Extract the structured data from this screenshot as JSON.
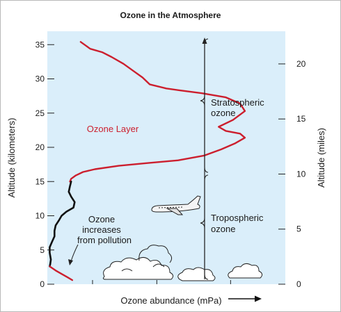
{
  "chart_data": {
    "type": "line",
    "title": "Ozone in the Atmosphere",
    "xlabel": "Ozone abundance (mPa)",
    "ylabel": "Altitude (kilometers)",
    "y2label": "Altitude (miles)",
    "ylim": [
      0,
      36
    ],
    "yticks": [
      0,
      5,
      10,
      15,
      20,
      25,
      30,
      35
    ],
    "y2ticks": [
      0,
      5,
      10,
      15,
      20
    ],
    "y2_per_y": 0.621371,
    "xlim": [
      0,
      10
    ],
    "x_tick_values": [
      1.9,
      4.6,
      7.7
    ],
    "grid": false,
    "series": [
      {
        "name": "Ozone Layer",
        "color": "#cc1f2e",
        "x": [
          0.95,
          1.0,
          1.2,
          1.5,
          2.0,
          3.0,
          4.2,
          5.5,
          6.6,
          7.3,
          7.9,
          8.3,
          8.1,
          7.5,
          7.2,
          7.8,
          8.3,
          8.1,
          7.5,
          6.5,
          5.6,
          5.0,
          4.3,
          4.0,
          3.6,
          3.2,
          2.7,
          2.3,
          1.8,
          1.6,
          1.4
        ],
        "y": [
          15.0,
          15.4,
          15.9,
          16.4,
          16.8,
          17.3,
          17.7,
          18.1,
          18.8,
          19.7,
          20.6,
          21.4,
          22.0,
          22.4,
          23.0,
          24.0,
          25.3,
          26.4,
          27.3,
          27.9,
          28.3,
          28.6,
          29.2,
          30.2,
          31.2,
          32.2,
          33.2,
          33.9,
          34.4,
          34.9,
          35.4
        ]
      },
      {
        "name": "Tropospheric profile",
        "color": "#111111",
        "x": [
          1.0,
          0.95,
          0.9,
          1.0,
          1.15,
          1.1,
          0.8,
          0.6,
          0.5,
          0.35,
          0.3,
          0.3,
          0.2,
          0.1,
          0.1,
          0.15,
          0.12,
          0.1
        ],
        "y": [
          15.0,
          14.3,
          13.5,
          12.8,
          12.0,
          11.2,
          10.6,
          10.0,
          9.4,
          8.6,
          7.8,
          7.0,
          6.2,
          5.4,
          4.6,
          3.6,
          2.9,
          2.6
        ]
      },
      {
        "name": "Ozone increases from pollution",
        "color": "#cc1f2e",
        "x": [
          0.1,
          0.35,
          0.6,
          0.85,
          1.05
        ],
        "y": [
          2.6,
          2.0,
          1.5,
          1.0,
          0.6
        ]
      }
    ],
    "annotations": {
      "ozone_layer": "Ozone Layer",
      "pollution": [
        "Ozone",
        "increases",
        "from pollution"
      ],
      "stratospheric": [
        "Stratospheric",
        "ozone"
      ],
      "tropospheric": [
        "Tropospheric",
        "ozone"
      ]
    },
    "regions": [
      {
        "label": "Stratospheric ozone",
        "y": [
          16,
          36
        ]
      },
      {
        "label": "Tropospheric ozone",
        "y": [
          0,
          16
        ]
      }
    ],
    "colors": {
      "plot_bg": "#daeefa",
      "ozone_layer": "#cc1f2e",
      "profile": "#111111"
    }
  }
}
